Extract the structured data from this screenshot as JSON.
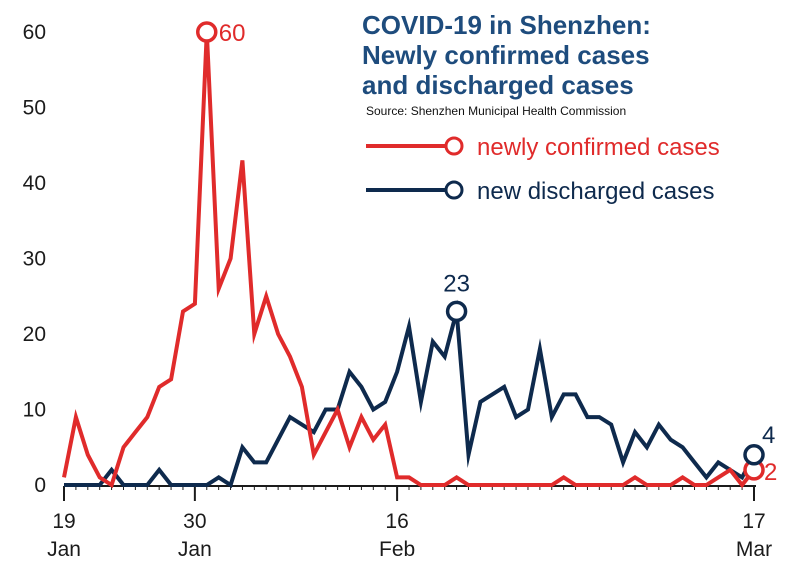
{
  "chart_data": {
    "type": "line",
    "title_lines": [
      "COVID-19 in Shenzhen:",
      "Newly confirmed cases",
      "and discharged cases"
    ],
    "source": "Source: Shenzhen Municipal Health Commission",
    "ylim": [
      0,
      60
    ],
    "y_ticks": [
      "0",
      "10",
      "20",
      "30",
      "40",
      "50",
      "60"
    ],
    "x_range_days": [
      0,
      58
    ],
    "x_ticks": [
      {
        "day": 0,
        "top": "19",
        "bottom": "Jan"
      },
      {
        "day": 11,
        "top": "30",
        "bottom": "Jan"
      },
      {
        "day": 28,
        "top": "16",
        "bottom": "Feb"
      },
      {
        "day": 58,
        "top": "17",
        "bottom": "Mar"
      }
    ],
    "colors": {
      "confirmed": "#e02b2b",
      "discharged": "#0e2a4d",
      "axis": "#1b1b1b"
    },
    "series": [
      {
        "name": "newly confirmed cases",
        "key": "confirmed",
        "x": [
          0,
          1,
          2,
          3,
          4,
          5,
          6,
          7,
          8,
          9,
          10,
          11,
          12,
          13,
          14,
          15,
          16,
          17,
          18,
          19,
          20,
          21,
          22,
          23,
          24,
          25,
          26,
          27,
          28,
          29,
          30,
          31,
          32,
          33,
          34,
          35,
          36,
          37,
          38,
          39,
          40,
          41,
          42,
          43,
          44,
          45,
          46,
          47,
          48,
          49,
          50,
          51,
          52,
          53,
          54,
          55,
          56,
          57,
          58
        ],
        "values": [
          1,
          9,
          4,
          1,
          0,
          5,
          7,
          9,
          13,
          14,
          23,
          24,
          60,
          26,
          30,
          43,
          20,
          25,
          20,
          17,
          13,
          4,
          7,
          10,
          5,
          9,
          6,
          8,
          1,
          1,
          0,
          0,
          0,
          1,
          0,
          0,
          0,
          0,
          0,
          0,
          0,
          0,
          1,
          0,
          0,
          0,
          0,
          0,
          1,
          0,
          0,
          0,
          1,
          0,
          0,
          1,
          2,
          0,
          2
        ],
        "annotation": {
          "day": 12,
          "value": 60,
          "label": "60"
        },
        "end_label": "2"
      },
      {
        "name": "new discharged cases",
        "key": "discharged",
        "x": [
          0,
          1,
          2,
          3,
          4,
          5,
          6,
          7,
          8,
          9,
          10,
          11,
          12,
          13,
          14,
          15,
          16,
          17,
          18,
          19,
          20,
          21,
          22,
          23,
          24,
          25,
          26,
          27,
          28,
          29,
          30,
          31,
          32,
          33,
          34,
          35,
          36,
          37,
          38,
          39,
          40,
          41,
          42,
          43,
          44,
          45,
          46,
          47,
          48,
          49,
          50,
          51,
          52,
          53,
          54,
          55,
          56,
          57,
          58
        ],
        "values": [
          0,
          0,
          0,
          0,
          2,
          0,
          0,
          0,
          2,
          0,
          0,
          0,
          0,
          1,
          0,
          5,
          3,
          3,
          6,
          9,
          8,
          7,
          10,
          10,
          15,
          13,
          10,
          11,
          15,
          21,
          11,
          19,
          17,
          23,
          4,
          11,
          12,
          13,
          9,
          10,
          18,
          9,
          12,
          12,
          9,
          9,
          8,
          3,
          7,
          5,
          8,
          6,
          5,
          3,
          1,
          3,
          2,
          1,
          4
        ],
        "annotation": {
          "day": 33,
          "value": 23,
          "label": "23"
        },
        "end_label": "4"
      }
    ]
  }
}
